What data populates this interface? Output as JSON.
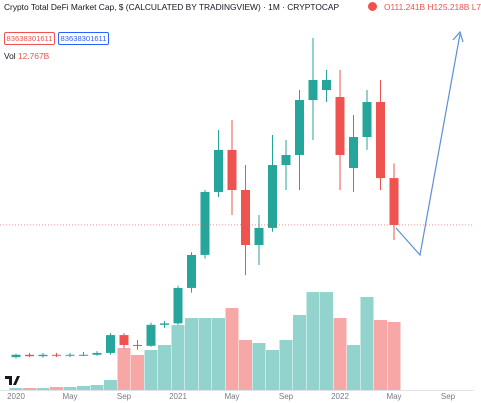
{
  "header": {
    "title": "Crypto Total DeFi Market Cap, $ (CALCULATED BY TRADINGVIEW) · 1M · CRYPTOCAP",
    "open": "O111.241B",
    "high": "H125.218B",
    "low": "L7",
    "buy_box": "83638301611",
    "sell_box": "83638301611",
    "vol_label": "Vol",
    "vol_value": "12.767B"
  },
  "chart_data": {
    "type": "candlestick",
    "categories": [
      "2020",
      null,
      null,
      null,
      "May",
      null,
      null,
      null,
      "Sep",
      null,
      null,
      null,
      "2021",
      null,
      null,
      null,
      "May",
      null,
      null,
      null,
      "Sep",
      null,
      null,
      null,
      "2022",
      null,
      null,
      null,
      "May",
      null,
      null,
      null,
      "Sep"
    ],
    "open": [
      26.1,
      26.6,
      26.3,
      26.6,
      26.4,
      26.6,
      26.6,
      27.0,
      31.2,
      28.8,
      28.6,
      33.9,
      34.3,
      45.7,
      59.7,
      99.4,
      139.7,
      101.0,
      64.7,
      74.3,
      123.6,
      134.1,
      209.3,
      226.9,
      214.4,
      120.7,
      155.1,
      205.9,
      111.241,
      null,
      null,
      null,
      null
    ],
    "high": [
      26.8,
      27.0,
      27.0,
      27.0,
      27.0,
      27.2,
      27.4,
      31.7,
      31.7,
      30.0,
      34.5,
      35.0,
      46.5,
      61.0,
      101.0,
      164.2,
      178.0,
      123.6,
      82.5,
      157.6,
      151.4,
      226.9,
      345.8,
      266.9,
      266.9,
      185.4,
      226.9,
      246.1,
      125.218,
      null,
      null,
      null,
      null
    ],
    "low": [
      25.8,
      26.1,
      26.0,
      26.1,
      26.1,
      26.3,
      26.4,
      26.6,
      28.0,
      27.7,
      28.4,
      33.0,
      33.9,
      44.0,
      58.0,
      95.4,
      82.5,
      50.7,
      55.0,
      72.0,
      101.0,
      101.0,
      151.4,
      205.9,
      101.0,
      99.4,
      139.7,
      101.0,
      67.4,
      null,
      null,
      null,
      null
    ],
    "close": [
      26.6,
      26.3,
      26.6,
      26.4,
      26.6,
      26.6,
      27.0,
      31.2,
      28.8,
      28.6,
      33.9,
      34.3,
      45.7,
      59.7,
      99.4,
      139.7,
      101.0,
      64.7,
      74.3,
      123.6,
      134.1,
      209.3,
      246.1,
      246.1,
      134.1,
      155.1,
      205.9,
      111.241,
      76.1,
      null,
      null,
      null,
      null
    ],
    "volume": [
      0.38,
      0.38,
      0.38,
      0.56,
      0.56,
      0.75,
      0.94,
      1.88,
      7.88,
      6.57,
      7.51,
      8.45,
      12.2,
      13.51,
      13.51,
      13.51,
      15.39,
      9.39,
      8.82,
      7.51,
      9.39,
      14.08,
      18.39,
      18.39,
      13.51,
      8.45,
      17.46,
      13.14,
      12.767,
      null,
      null,
      null,
      null
    ],
    "ylim": [
      20,
      400
    ],
    "log_scale": true,
    "vlim": [
      0,
      20.65
    ],
    "up_color": "#26a69a",
    "down_color": "#ef5350",
    "volume_up_color": "#92d4cd",
    "volume_down_color": "#f7a8a6"
  }
}
